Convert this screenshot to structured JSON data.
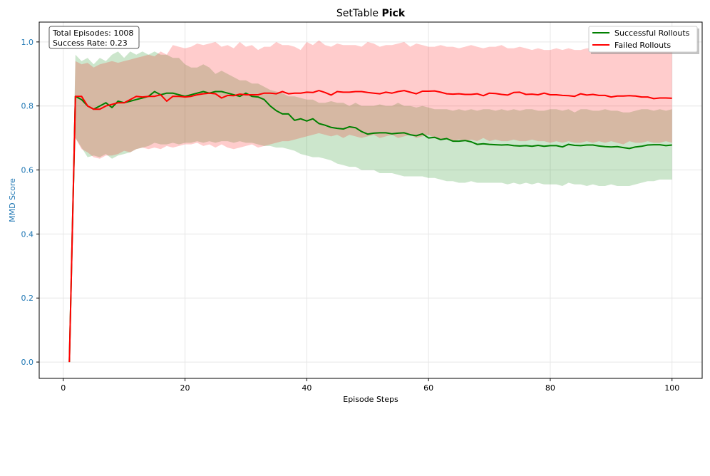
{
  "chart_data": {
    "type": "line",
    "title": "SetTable",
    "title_bold": "Pick",
    "xlabel": "Episode Steps",
    "ylabel": "MMD Score",
    "xlim": [
      -3.95,
      104.95
    ],
    "ylim": [
      -0.051,
      1.062
    ],
    "xticks": [
      0,
      20,
      40,
      60,
      80,
      100
    ],
    "yticks": [
      0.0,
      0.2,
      0.4,
      0.6,
      0.8,
      1.0
    ],
    "ytick_labels": [
      "0.0",
      "0.2",
      "0.4",
      "0.6",
      "0.8",
      "1.0"
    ],
    "grid": true,
    "legend_placement": "top-right",
    "axis_label_color": "#1f77b4",
    "annotation": [
      "Total Episodes: 1008",
      "Success Rate: 0.23"
    ],
    "x_start": 1,
    "series": [
      {
        "name": "Successful Rollouts",
        "color": "#008000",
        "mean": [
          0,
          0.83,
          0.82,
          0.8,
          0.79,
          0.8,
          0.81,
          0.795,
          0.815,
          0.81,
          0.815,
          0.82,
          0.825,
          0.83,
          0.845,
          0.835,
          0.84,
          0.84,
          0.835,
          0.83,
          0.835,
          0.84,
          0.845,
          0.84,
          0.845,
          0.845,
          0.84,
          0.835,
          0.83,
          0.84,
          0.83,
          0.828,
          0.82,
          0.8,
          0.785,
          0.775,
          0.775,
          0.755,
          0.76,
          0.753,
          0.76,
          0.745,
          0.74,
          0.733,
          0.73,
          0.728,
          0.735,
          0.732,
          0.72,
          0.712,
          0.715,
          0.716,
          0.716,
          0.713,
          0.715,
          0.716,
          0.71,
          0.707,
          0.713,
          0.7,
          0.702,
          0.695,
          0.698,
          0.69,
          0.69,
          0.692,
          0.688,
          0.68,
          0.682,
          0.68,
          0.679,
          0.678,
          0.679,
          0.676,
          0.675,
          0.676,
          0.674,
          0.677,
          0.674,
          0.676,
          0.676,
          0.672,
          0.68,
          0.677,
          0.676,
          0.678,
          0.678,
          0.675,
          0.673,
          0.672,
          0.673,
          0.67,
          0.667,
          0.672,
          0.674,
          0.678,
          0.679,
          0.679,
          0.676,
          0.678
        ],
        "lower": [
          0,
          0.7,
          0.67,
          0.64,
          0.645,
          0.64,
          0.65,
          0.635,
          0.645,
          0.65,
          0.655,
          0.665,
          0.67,
          0.675,
          0.685,
          0.68,
          0.68,
          0.685,
          0.68,
          0.685,
          0.685,
          0.69,
          0.685,
          0.69,
          0.685,
          0.69,
          0.69,
          0.685,
          0.69,
          0.685,
          0.685,
          0.68,
          0.675,
          0.675,
          0.67,
          0.67,
          0.665,
          0.66,
          0.65,
          0.645,
          0.64,
          0.64,
          0.635,
          0.63,
          0.62,
          0.615,
          0.61,
          0.61,
          0.6,
          0.6,
          0.6,
          0.59,
          0.59,
          0.59,
          0.585,
          0.58,
          0.58,
          0.58,
          0.58,
          0.575,
          0.575,
          0.57,
          0.565,
          0.565,
          0.56,
          0.56,
          0.565,
          0.56,
          0.56,
          0.56,
          0.56,
          0.56,
          0.555,
          0.56,
          0.555,
          0.56,
          0.555,
          0.56,
          0.555,
          0.555,
          0.555,
          0.55,
          0.56,
          0.555,
          0.555,
          0.55,
          0.555,
          0.55,
          0.55,
          0.555,
          0.55,
          0.55,
          0.55,
          0.555,
          0.56,
          0.565,
          0.565,
          0.57,
          0.57,
          0.57
        ],
        "upper": [
          0,
          0.96,
          0.94,
          0.95,
          0.93,
          0.95,
          0.94,
          0.96,
          0.97,
          0.95,
          0.97,
          0.96,
          0.97,
          0.96,
          0.97,
          0.96,
          0.96,
          0.95,
          0.95,
          0.93,
          0.92,
          0.92,
          0.93,
          0.92,
          0.9,
          0.91,
          0.9,
          0.89,
          0.88,
          0.88,
          0.87,
          0.87,
          0.86,
          0.85,
          0.845,
          0.84,
          0.83,
          0.83,
          0.825,
          0.82,
          0.82,
          0.81,
          0.81,
          0.815,
          0.81,
          0.81,
          0.8,
          0.81,
          0.8,
          0.8,
          0.8,
          0.805,
          0.8,
          0.8,
          0.81,
          0.8,
          0.8,
          0.795,
          0.8,
          0.795,
          0.79,
          0.79,
          0.79,
          0.785,
          0.79,
          0.785,
          0.79,
          0.785,
          0.79,
          0.79,
          0.785,
          0.79,
          0.785,
          0.79,
          0.785,
          0.79,
          0.79,
          0.785,
          0.785,
          0.79,
          0.79,
          0.785,
          0.79,
          0.78,
          0.79,
          0.79,
          0.785,
          0.785,
          0.79,
          0.785,
          0.785,
          0.78,
          0.78,
          0.785,
          0.79,
          0.79,
          0.785,
          0.79,
          0.785,
          0.79
        ]
      },
      {
        "name": "Failed Rollouts",
        "color": "#ff0000",
        "mean": [
          0,
          0.83,
          0.83,
          0.8,
          0.79,
          0.79,
          0.8,
          0.805,
          0.81,
          0.81,
          0.82,
          0.83,
          0.828,
          0.83,
          0.83,
          0.835,
          0.815,
          0.83,
          0.83,
          0.828,
          0.83,
          0.835,
          0.838,
          0.84,
          0.838,
          0.825,
          0.833,
          0.832,
          0.837,
          0.835,
          0.835,
          0.835,
          0.84,
          0.84,
          0.838,
          0.845,
          0.838,
          0.84,
          0.84,
          0.843,
          0.842,
          0.848,
          0.842,
          0.834,
          0.845,
          0.843,
          0.843,
          0.845,
          0.845,
          0.842,
          0.84,
          0.838,
          0.843,
          0.84,
          0.845,
          0.848,
          0.843,
          0.838,
          0.846,
          0.846,
          0.847,
          0.843,
          0.838,
          0.837,
          0.838,
          0.836,
          0.836,
          0.838,
          0.832,
          0.84,
          0.839,
          0.836,
          0.834,
          0.842,
          0.843,
          0.836,
          0.837,
          0.835,
          0.84,
          0.835,
          0.835,
          0.833,
          0.832,
          0.83,
          0.838,
          0.834,
          0.836,
          0.833,
          0.833,
          0.828,
          0.831,
          0.831,
          0.832,
          0.831,
          0.828,
          0.828,
          0.823,
          0.825,
          0.825,
          0.824
        ],
        "lower": [
          0,
          0.7,
          0.665,
          0.655,
          0.64,
          0.635,
          0.645,
          0.645,
          0.65,
          0.66,
          0.655,
          0.665,
          0.67,
          0.665,
          0.67,
          0.665,
          0.675,
          0.67,
          0.675,
          0.68,
          0.68,
          0.685,
          0.675,
          0.68,
          0.67,
          0.68,
          0.67,
          0.665,
          0.67,
          0.675,
          0.68,
          0.67,
          0.675,
          0.68,
          0.685,
          0.69,
          0.69,
          0.695,
          0.7,
          0.705,
          0.71,
          0.715,
          0.71,
          0.705,
          0.71,
          0.7,
          0.71,
          0.705,
          0.7,
          0.705,
          0.71,
          0.7,
          0.705,
          0.71,
          0.7,
          0.705,
          0.71,
          0.7,
          0.705,
          0.71,
          0.7,
          0.695,
          0.7,
          0.69,
          0.695,
          0.69,
          0.695,
          0.69,
          0.7,
          0.69,
          0.695,
          0.69,
          0.69,
          0.695,
          0.69,
          0.69,
          0.695,
          0.69,
          0.69,
          0.685,
          0.69,
          0.685,
          0.69,
          0.685,
          0.685,
          0.69,
          0.685,
          0.69,
          0.685,
          0.69,
          0.685,
          0.68,
          0.69,
          0.685,
          0.685,
          0.69,
          0.685,
          0.685,
          0.69,
          0.685
        ],
        "upper": [
          0,
          0.94,
          0.93,
          0.935,
          0.92,
          0.93,
          0.935,
          0.94,
          0.935,
          0.94,
          0.945,
          0.95,
          0.955,
          0.96,
          0.955,
          0.97,
          0.96,
          0.99,
          0.985,
          0.98,
          0.985,
          0.995,
          0.99,
          0.995,
          1.0,
          0.985,
          0.99,
          0.98,
          1.0,
          0.985,
          0.99,
          0.975,
          0.985,
          0.985,
          1.0,
          0.99,
          0.99,
          0.985,
          0.975,
          1.0,
          0.99,
          1.005,
          0.99,
          0.985,
          0.995,
          0.99,
          0.99,
          0.99,
          0.985,
          1.0,
          0.995,
          0.985,
          0.99,
          0.99,
          0.995,
          1.0,
          0.985,
          0.995,
          0.99,
          0.985,
          0.985,
          0.99,
          0.985,
          0.985,
          0.98,
          0.985,
          0.99,
          0.985,
          0.98,
          0.985,
          0.985,
          0.99,
          0.98,
          0.98,
          0.985,
          0.98,
          0.975,
          0.98,
          0.975,
          0.975,
          0.98,
          0.975,
          0.98,
          0.975,
          0.975,
          0.98,
          0.98,
          0.975,
          0.98,
          0.98,
          0.975,
          0.975,
          0.975,
          0.97,
          0.975,
          0.975,
          0.98,
          0.975,
          0.975,
          0.975
        ]
      }
    ]
  }
}
